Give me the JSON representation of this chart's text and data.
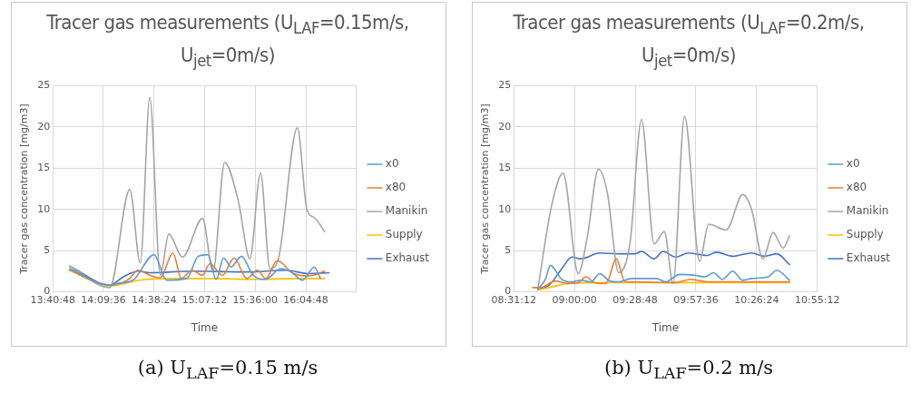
{
  "chart_data": [
    {
      "type": "line",
      "title": "Tracer gas measurements (U$_{LAF}$=0.15m/s, U$_{jet}$=0m/s)",
      "xlabel": "Time",
      "ylabel": "Tracer gas concentration [mg/m3]",
      "annotations": [
        "(a) U$_{LAF}$=0.15 m/s"
      ],
      "grid": true,
      "legend": "right",
      "marker": "none",
      "line_style": "solid",
      "xlim": [
        13.68,
        16.56
      ],
      "xticks": [
        {
          "value": 13.68,
          "label": "13:40:48"
        },
        {
          "value": 14.16,
          "label": "14:09:36"
        },
        {
          "value": 14.64,
          "label": "14:38:24"
        },
        {
          "value": 15.12,
          "label": "15:07:12"
        },
        {
          "value": 15.6,
          "label": "15:36:00"
        },
        {
          "value": 16.08,
          "label": "16:04:48"
        },
        {
          "value": 16.56,
          "label": null
        }
      ],
      "ylim": [
        0,
        25
      ],
      "yticks": [
        0,
        5,
        10,
        15,
        20,
        25
      ],
      "series": [
        {
          "name": "x0",
          "color": "#5b9bd5",
          "x": [
            13.84,
            14.22,
            14.3,
            14.45,
            14.64,
            14.76,
            14.95,
            15.06,
            15.15,
            15.23,
            15.3,
            15.37,
            15.47,
            15.58,
            15.7,
            15.84,
            15.94,
            16.05,
            16.16,
            16.22
          ],
          "values": [
            2.8,
            0.8,
            1.0,
            1.5,
            4.5,
            1.4,
            1.6,
            4.3,
            4.5,
            1.5,
            4.1,
            3.0,
            4.3,
            2.0,
            1.5,
            2.8,
            2.4,
            1.4,
            3.0,
            1.6
          ]
        },
        {
          "name": "x80",
          "color": "#ed7d31",
          "x": [
            13.84,
            14.22,
            14.4,
            14.49,
            14.6,
            14.7,
            14.82,
            14.9,
            15.0,
            15.1,
            15.17,
            15.29,
            15.4,
            15.52,
            15.62,
            15.7,
            15.81,
            15.95,
            16.1,
            16.26
          ],
          "values": [
            2.6,
            0.8,
            1.5,
            2.6,
            2.0,
            1.7,
            4.7,
            1.6,
            2.6,
            2.0,
            3.4,
            2.0,
            4.1,
            1.6,
            2.6,
            1.6,
            3.8,
            2.3,
            1.9,
            2.5
          ]
        },
        {
          "name": "Manikin",
          "color": "#a5a5a5",
          "x": [
            13.84,
            14.22,
            14.41,
            14.51,
            14.6,
            14.7,
            14.78,
            14.91,
            15.1,
            15.2,
            15.31,
            15.44,
            15.55,
            15.65,
            15.74,
            15.82,
            16.0,
            16.09,
            16.16,
            16.26
          ],
          "values": [
            3.1,
            0.5,
            12.4,
            3.5,
            23.6,
            2.0,
            7.0,
            4.2,
            8.9,
            2.5,
            15.7,
            11.0,
            4.0,
            14.4,
            2.8,
            4.0,
            19.9,
            10.0,
            9.0,
            7.3
          ]
        },
        {
          "name": "Supply",
          "color": "#ffc000",
          "x": [
            13.84,
            14.22,
            14.5,
            14.8,
            15.2,
            15.6,
            16.0,
            16.26
          ],
          "values": [
            2.6,
            0.7,
            1.4,
            1.6,
            1.6,
            1.5,
            1.6,
            1.6
          ]
        },
        {
          "name": "Exhaust",
          "color": "#4472c4",
          "x": [
            13.84,
            14.22,
            14.35,
            14.49,
            14.6,
            15.0,
            15.5,
            15.9,
            16.1,
            16.3
          ],
          "values": [
            3.1,
            0.8,
            1.8,
            2.5,
            2.3,
            2.5,
            2.4,
            2.6,
            2.2,
            2.3
          ]
        }
      ]
    },
    {
      "type": "line",
      "title": "Tracer gas measurements (U$_{LAF}$=0.2m/s, U$_{jet}$=0m/s)",
      "xlabel": "Time",
      "ylabel": "Tracer gas concentration [mg/m3]",
      "annotations": [
        "(b) U$_{LAF}$=0.2 m/s"
      ],
      "grid": true,
      "legend": "right",
      "marker": "none",
      "line_style": "solid",
      "xlim": [
        8.52,
        10.92
      ],
      "xticks": [
        {
          "value": 8.52,
          "label": "08:31:12"
        },
        {
          "value": 9.0,
          "label": "09:00:00"
        },
        {
          "value": 9.48,
          "label": "09:28:48"
        },
        {
          "value": 9.96,
          "label": "09:57:36"
        },
        {
          "value": 10.44,
          "label": "10:26:24"
        },
        {
          "value": 10.92,
          "label": "10:55:12"
        }
      ],
      "ylim": [
        0,
        25
      ],
      "yticks": [
        0,
        5,
        10,
        15,
        20,
        25
      ],
      "series": [
        {
          "name": "x0",
          "color": "#5b9bd5",
          "x": [
            8.71,
            8.77,
            8.81,
            8.9,
            8.98,
            9.05,
            9.13,
            9.2,
            9.28,
            9.35,
            9.45,
            9.65,
            9.72,
            9.83,
            9.95,
            10.03,
            10.1,
            10.17,
            10.25,
            10.33,
            10.4,
            10.53,
            10.6,
            10.7
          ],
          "values": [
            0.3,
            1.5,
            3.2,
            1.5,
            1.2,
            1.4,
            1.2,
            2.2,
            1.3,
            1.2,
            1.6,
            1.6,
            1.2,
            2.1,
            2.0,
            1.8,
            2.3,
            1.5,
            2.5,
            1.4,
            1.6,
            1.8,
            2.6,
            1.4
          ]
        },
        {
          "name": "x80",
          "color": "#ed7d31",
          "x": [
            8.67,
            8.73,
            8.85,
            8.95,
            9.03,
            9.09,
            9.16,
            9.25,
            9.33,
            9.4,
            9.48,
            9.8,
            9.92,
            10.05,
            10.3,
            10.7
          ],
          "values": [
            0.5,
            0.5,
            1.3,
            1.0,
            1.1,
            1.8,
            1.1,
            1.0,
            4.0,
            1.2,
            1.2,
            1.1,
            1.5,
            1.2,
            1.2,
            1.2
          ]
        },
        {
          "name": "Manikin",
          "color": "#a5a5a5",
          "x": [
            8.71,
            8.82,
            8.91,
            9.03,
            9.1,
            9.19,
            9.26,
            9.35,
            9.44,
            9.53,
            9.63,
            9.71,
            9.78,
            9.87,
            9.99,
            10.06,
            10.2,
            10.33,
            10.4,
            10.49,
            10.57,
            10.65,
            10.7
          ],
          "values": [
            0.3,
            10.5,
            14.4,
            2.2,
            6.5,
            14.9,
            12.0,
            2.3,
            6.0,
            20.9,
            5.8,
            7.3,
            1.0,
            21.3,
            3.7,
            8.2,
            7.5,
            11.8,
            10.0,
            4.0,
            7.2,
            5.3,
            6.8
          ]
        },
        {
          "name": "Supply",
          "color": "#ffc000",
          "x": [
            8.71,
            8.8,
            8.95,
            9.2,
            9.5,
            10.0,
            10.4,
            10.7
          ],
          "values": [
            0.2,
            0.5,
            1.0,
            1.1,
            1.1,
            1.1,
            1.1,
            1.1
          ]
        },
        {
          "name": "Exhaust",
          "color": "#4472c4",
          "x": [
            8.71,
            8.8,
            8.9,
            8.98,
            9.05,
            9.2,
            9.35,
            9.48,
            9.53,
            9.63,
            9.7,
            9.8,
            9.9,
            10.05,
            10.12,
            10.25,
            10.4,
            10.5,
            10.6,
            10.7
          ],
          "values": [
            0.3,
            0.8,
            2.8,
            4.2,
            4.0,
            4.7,
            4.6,
            4.6,
            4.9,
            4.0,
            4.9,
            4.2,
            4.7,
            4.4,
            4.8,
            4.3,
            4.7,
            4.3,
            4.6,
            3.3
          ]
        }
      ]
    }
  ]
}
